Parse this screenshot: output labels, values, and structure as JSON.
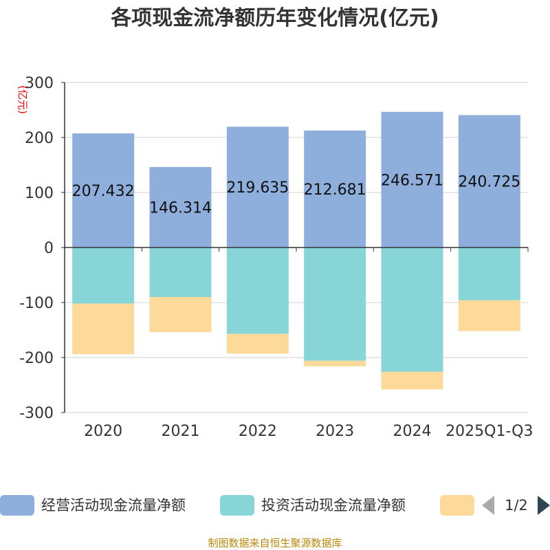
{
  "chart_data": {
    "type": "bar",
    "title": "各项现金流净额历年变化情况(亿元)",
    "unit_label": "(亿元)",
    "categories": [
      "2020",
      "2021",
      "2022",
      "2023",
      "2024",
      "2025Q1-Q3"
    ],
    "ylim": [
      -300,
      300
    ],
    "yticks": [
      300,
      200,
      100,
      0,
      -100,
      -200,
      -300
    ],
    "stacked": true,
    "grid": true,
    "series": [
      {
        "name": "经营活动现金流量净额",
        "color": "#8eaedb",
        "values": [
          207.432,
          146.314,
          219.635,
          212.681,
          246.571,
          240.725
        ],
        "labels": [
          "207.432",
          "146.314",
          "219.635",
          "212.681",
          "246.571",
          "240.725"
        ]
      },
      {
        "name": "投资活动现金流量净额",
        "color": "#87d5d7",
        "values": [
          -102,
          -90,
          -157,
          -206,
          -226,
          -96
        ]
      },
      {
        "name": "",
        "color": "#fdd99a",
        "values": [
          -92,
          -64,
          -36,
          -10,
          -32,
          -56
        ]
      }
    ],
    "legend": {
      "position": "bottom",
      "page": "1/2"
    }
  },
  "source": "制图数据来自恒生聚源数据库"
}
